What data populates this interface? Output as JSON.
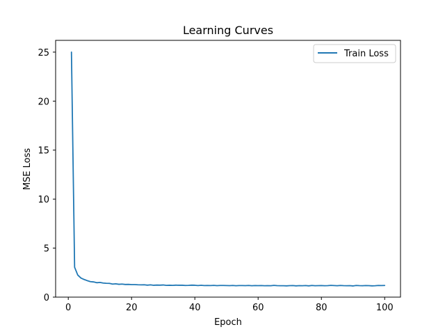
{
  "chart_data": {
    "type": "line",
    "title": "Learning Curves",
    "xlabel": "Epoch",
    "ylabel": "MSE Loss",
    "xlim": [
      -4.0,
      105.0
    ],
    "ylim": [
      -0.0,
      26.2
    ],
    "xticks": [
      0,
      20,
      40,
      60,
      80,
      100
    ],
    "yticks": [
      0,
      5,
      10,
      15,
      20,
      25
    ],
    "grid": false,
    "legend_position": "top-right",
    "series": [
      {
        "name": "Train Loss",
        "color": "#1f77b4",
        "x": [
          1,
          2,
          3,
          4,
          5,
          6,
          7,
          8,
          9,
          10,
          11,
          12,
          13,
          14,
          15,
          16,
          17,
          18,
          19,
          20,
          21,
          22,
          23,
          24,
          25,
          26,
          27,
          28,
          29,
          30,
          31,
          32,
          33,
          34,
          35,
          36,
          37,
          38,
          39,
          40,
          41,
          42,
          43,
          44,
          45,
          46,
          47,
          48,
          49,
          50,
          51,
          52,
          53,
          54,
          55,
          56,
          57,
          58,
          59,
          60,
          61,
          62,
          63,
          64,
          65,
          66,
          67,
          68,
          69,
          70,
          71,
          72,
          73,
          74,
          75,
          76,
          77,
          78,
          79,
          80,
          81,
          82,
          83,
          84,
          85,
          86,
          87,
          88,
          89,
          90,
          91,
          92,
          93,
          94,
          95,
          96,
          97,
          98,
          99,
          100
        ],
        "y": [
          25.0,
          3.05,
          2.25,
          1.95,
          1.8,
          1.68,
          1.58,
          1.55,
          1.47,
          1.5,
          1.44,
          1.41,
          1.4,
          1.33,
          1.36,
          1.31,
          1.33,
          1.29,
          1.3,
          1.28,
          1.28,
          1.26,
          1.25,
          1.26,
          1.22,
          1.25,
          1.21,
          1.23,
          1.22,
          1.24,
          1.2,
          1.21,
          1.2,
          1.22,
          1.21,
          1.21,
          1.19,
          1.2,
          1.22,
          1.21,
          1.18,
          1.21,
          1.18,
          1.19,
          1.18,
          1.2,
          1.17,
          1.19,
          1.19,
          1.18,
          1.17,
          1.19,
          1.16,
          1.18,
          1.18,
          1.17,
          1.19,
          1.16,
          1.18,
          1.17,
          1.18,
          1.16,
          1.17,
          1.16,
          1.2,
          1.17,
          1.16,
          1.16,
          1.15,
          1.17,
          1.18,
          1.15,
          1.17,
          1.16,
          1.18,
          1.15,
          1.19,
          1.16,
          1.17,
          1.18,
          1.16,
          1.17,
          1.2,
          1.18,
          1.16,
          1.19,
          1.17,
          1.16,
          1.17,
          1.14,
          1.19,
          1.17,
          1.16,
          1.18,
          1.17,
          1.15,
          1.16,
          1.19,
          1.18,
          1.19
        ]
      }
    ]
  }
}
